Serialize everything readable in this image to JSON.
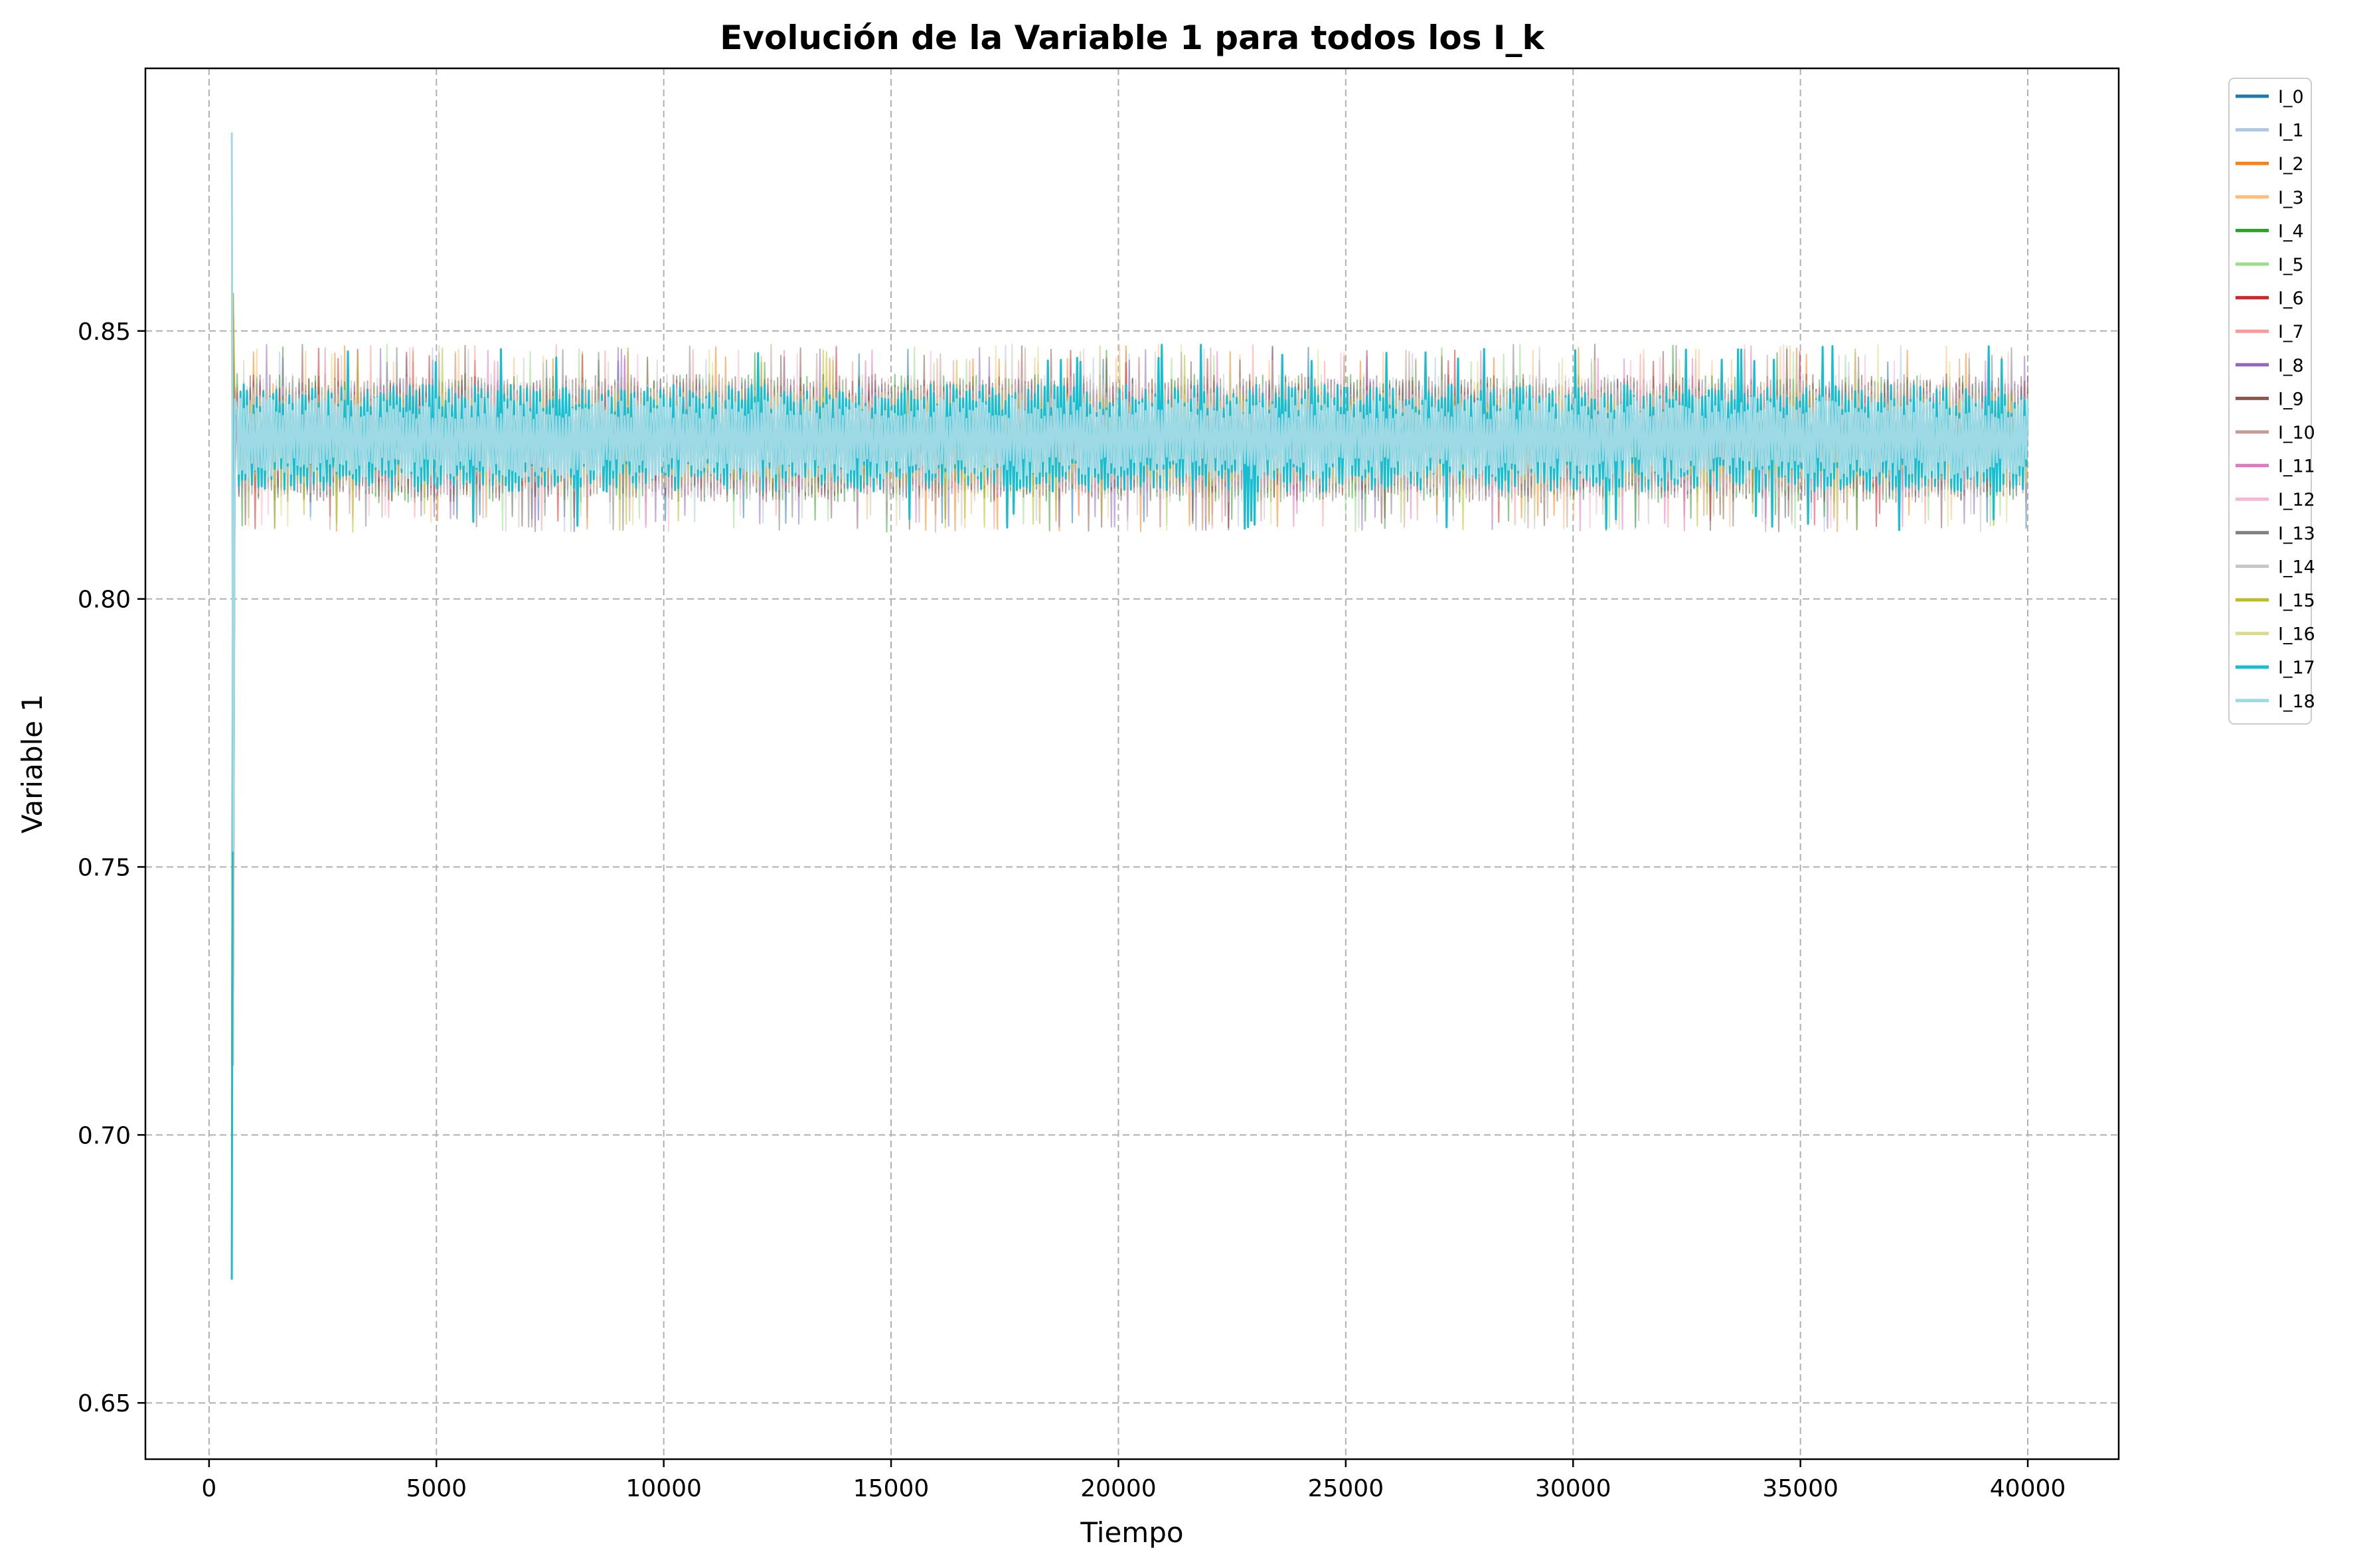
{
  "chart_data": {
    "type": "line",
    "title": "Evolución de la Variable 1 para todos los I_k",
    "xlabel": "Tiempo",
    "ylabel": "Variable 1",
    "xlim": [
      -1400,
      42000
    ],
    "ylim": [
      0.6395,
      0.899
    ],
    "x_ticks": [
      0,
      5000,
      10000,
      15000,
      20000,
      25000,
      30000,
      35000,
      40000
    ],
    "x_tick_labels": [
      "0",
      "5000",
      "10000",
      "15000",
      "20000",
      "25000",
      "30000",
      "35000",
      "40000"
    ],
    "y_ticks": [
      0.65,
      0.7,
      0.75,
      0.8,
      0.85
    ],
    "y_tick_labels": [
      "0.65",
      "0.70",
      "0.75",
      "0.80",
      "0.85"
    ],
    "grid": true,
    "legend_position": "outside-right-top",
    "x_range": [
      500,
      40000
    ],
    "steady_mean": 0.83,
    "band_inner": [
      0.822,
      0.838
    ],
    "band_outer": [
      0.813,
      0.848
    ],
    "initial_spike": {
      "x": 500,
      "min": 0.653,
      "max": 0.887
    },
    "series": [
      {
        "name": "I_0",
        "color": "#1f77b4"
      },
      {
        "name": "I_1",
        "color": "#aec7e8"
      },
      {
        "name": "I_2",
        "color": "#ff7f0e"
      },
      {
        "name": "I_3",
        "color": "#ffbb78"
      },
      {
        "name": "I_4",
        "color": "#2ca02c"
      },
      {
        "name": "I_5",
        "color": "#98df8a"
      },
      {
        "name": "I_6",
        "color": "#d62728"
      },
      {
        "name": "I_7",
        "color": "#ff9896"
      },
      {
        "name": "I_8",
        "color": "#9467bd"
      },
      {
        "name": "I_9",
        "color": "#8c564b"
      },
      {
        "name": "I_10",
        "color": "#c49c94"
      },
      {
        "name": "I_11",
        "color": "#e377c2"
      },
      {
        "name": "I_12",
        "color": "#f7b6d2"
      },
      {
        "name": "I_13",
        "color": "#7f7f7f"
      },
      {
        "name": "I_14",
        "color": "#c7c7c7"
      },
      {
        "name": "I_15",
        "color": "#bcbd22"
      },
      {
        "name": "I_16",
        "color": "#dbdb8d"
      },
      {
        "name": "I_17",
        "color": "#17becf"
      },
      {
        "name": "I_18",
        "color": "#9edae5"
      }
    ]
  }
}
